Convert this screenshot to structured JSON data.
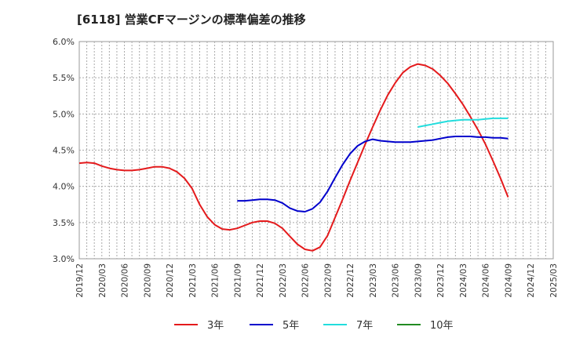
{
  "chart_data": {
    "type": "line",
    "title": "[6118]  営業CFマージンの標準偏差の推移",
    "xlabel": "",
    "ylabel": "",
    "ylim": [
      3.0,
      6.0
    ],
    "y_ticks": [
      "6.0%",
      "5.5%",
      "5.0%",
      "4.5%",
      "4.0%",
      "3.5%",
      "3.0%"
    ],
    "y_tick_values": [
      6.0,
      5.5,
      5.0,
      4.5,
      4.0,
      3.5,
      3.0
    ],
    "x_ticks": [
      "2019/12",
      "2020/03",
      "2020/06",
      "2020/09",
      "2020/12",
      "2021/03",
      "2021/06",
      "2021/09",
      "2021/12",
      "2022/03",
      "2022/06",
      "2022/09",
      "2022/12",
      "2023/03",
      "2023/06",
      "2023/09",
      "2023/12",
      "2024/03",
      "2024/06",
      "2024/09",
      "2024/12",
      "2025/03"
    ],
    "grid": true,
    "legend_position": "bottom",
    "colors": {
      "3年": "#e41a1c",
      "5年": "#0000cc",
      "7年": "#22dddd",
      "10年": "#228b22"
    },
    "series": [
      {
        "name": "3年",
        "color": "#e41a1c",
        "x": [
          "2019/12",
          "2020/01",
          "2020/02",
          "2020/03",
          "2020/04",
          "2020/05",
          "2020/06",
          "2020/07",
          "2020/08",
          "2020/09",
          "2020/10",
          "2020/11",
          "2020/12",
          "2021/01",
          "2021/02",
          "2021/03",
          "2021/04",
          "2021/05",
          "2021/06",
          "2021/07",
          "2021/08",
          "2021/09",
          "2021/10",
          "2021/11",
          "2021/12",
          "2022/01",
          "2022/02",
          "2022/03",
          "2022/04",
          "2022/05",
          "2022/06",
          "2022/07",
          "2022/08",
          "2022/09",
          "2022/10",
          "2022/11",
          "2022/12",
          "2023/01",
          "2023/02",
          "2023/03",
          "2023/04",
          "2023/05",
          "2023/06",
          "2023/07",
          "2023/08",
          "2023/09",
          "2023/10",
          "2023/11",
          "2023/12",
          "2024/01",
          "2024/02",
          "2024/03",
          "2024/04",
          "2024/05",
          "2024/06",
          "2024/07",
          "2024/08",
          "2024/09"
        ],
        "values": [
          4.32,
          4.33,
          4.32,
          4.28,
          4.25,
          4.23,
          4.22,
          4.22,
          4.23,
          4.25,
          4.27,
          4.27,
          4.25,
          4.2,
          4.11,
          3.97,
          3.75,
          3.58,
          3.47,
          3.41,
          3.4,
          3.42,
          3.46,
          3.5,
          3.52,
          3.52,
          3.49,
          3.42,
          3.31,
          3.2,
          3.13,
          3.11,
          3.16,
          3.32,
          3.57,
          3.82,
          4.08,
          4.33,
          4.58,
          4.82,
          5.05,
          5.26,
          5.43,
          5.57,
          5.65,
          5.69,
          5.67,
          5.62,
          5.53,
          5.42,
          5.28,
          5.13,
          4.96,
          4.78,
          4.58,
          4.35,
          4.11,
          3.85
        ]
      },
      {
        "name": "5年",
        "color": "#0000cc",
        "x": [
          "2021/09",
          "2021/10",
          "2021/11",
          "2021/12",
          "2022/01",
          "2022/02",
          "2022/03",
          "2022/04",
          "2022/05",
          "2022/06",
          "2022/07",
          "2022/08",
          "2022/09",
          "2022/10",
          "2022/11",
          "2022/12",
          "2023/01",
          "2023/02",
          "2023/03",
          "2023/04",
          "2023/05",
          "2023/06",
          "2023/07",
          "2023/08",
          "2023/09",
          "2023/10",
          "2023/11",
          "2023/12",
          "2024/01",
          "2024/02",
          "2024/03",
          "2024/04",
          "2024/05",
          "2024/06",
          "2024/07",
          "2024/08",
          "2024/09"
        ],
        "values": [
          3.8,
          3.8,
          3.81,
          3.82,
          3.82,
          3.81,
          3.77,
          3.7,
          3.66,
          3.65,
          3.69,
          3.78,
          3.93,
          4.12,
          4.3,
          4.45,
          4.56,
          4.62,
          4.65,
          4.63,
          4.62,
          4.61,
          4.61,
          4.61,
          4.62,
          4.63,
          4.64,
          4.66,
          4.68,
          4.69,
          4.69,
          4.69,
          4.68,
          4.68,
          4.67,
          4.67,
          4.66
        ]
      },
      {
        "name": "7年",
        "color": "#22dddd",
        "x": [
          "2023/09",
          "2023/10",
          "2023/11",
          "2023/12",
          "2024/01",
          "2024/02",
          "2024/03",
          "2024/04",
          "2024/05",
          "2024/06",
          "2024/07",
          "2024/08",
          "2024/09"
        ],
        "values": [
          4.82,
          4.84,
          4.86,
          4.88,
          4.9,
          4.91,
          4.92,
          4.92,
          4.92,
          4.93,
          4.94,
          4.94,
          4.94
        ]
      },
      {
        "name": "10年",
        "color": "#228b22",
        "x": [],
        "values": []
      }
    ]
  }
}
